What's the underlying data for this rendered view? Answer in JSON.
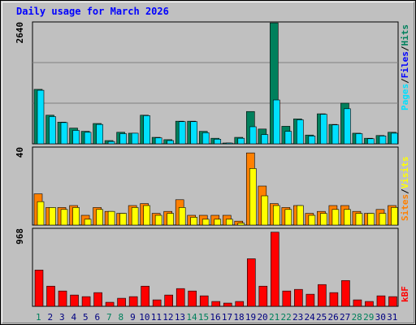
{
  "title": "Daily usage for March 2026",
  "colors": {
    "hits": "#00805c",
    "files": "#0000ff",
    "pages": "#00e0ff",
    "visits": "#ffff00",
    "sites": "#ff8000",
    "kbytes": "#ff0000",
    "weekend_label": "#00805c",
    "weekday_label": "#000080",
    "background": "#c0c0c0"
  },
  "chart_data": [
    {
      "type": "bar",
      "title": "Daily usage for March 2026",
      "ymax_label": "2640",
      "ylim": [
        0,
        2640
      ],
      "legend": [
        "Pages",
        "/",
        "Files",
        "/",
        "Hits"
      ],
      "categories": [
        "1",
        "2",
        "3",
        "4",
        "5",
        "6",
        "7",
        "8",
        "9",
        "10",
        "11",
        "12",
        "13",
        "14",
        "15",
        "16",
        "17",
        "18",
        "19",
        "20",
        "21",
        "22",
        "23",
        "24",
        "25",
        "26",
        "27",
        "28",
        "29",
        "30",
        "31"
      ],
      "series": [
        {
          "name": "Hits",
          "values": [
            1180,
            620,
            470,
            340,
            270,
            440,
            70,
            250,
            230,
            620,
            140,
            90,
            490,
            490,
            270,
            120,
            10,
            140,
            700,
            320,
            2620,
            380,
            540,
            190,
            650,
            420,
            880,
            230,
            120,
            180,
            250
          ]
        },
        {
          "name": "Pages",
          "values": [
            1160,
            590,
            460,
            290,
            250,
            420,
            50,
            220,
            230,
            610,
            130,
            70,
            480,
            480,
            240,
            100,
            10,
            120,
            370,
            200,
            950,
            270,
            520,
            170,
            640,
            410,
            760,
            220,
            110,
            170,
            230
          ]
        }
      ]
    },
    {
      "type": "bar",
      "ymax_label": "40",
      "ylim": [
        0,
        40
      ],
      "legend": [
        "Sites",
        "/",
        "Visits"
      ],
      "categories": [
        "1",
        "2",
        "3",
        "4",
        "5",
        "6",
        "7",
        "8",
        "9",
        "10",
        "11",
        "12",
        "13",
        "14",
        "15",
        "16",
        "17",
        "18",
        "19",
        "20",
        "21",
        "22",
        "23",
        "24",
        "25",
        "26",
        "27",
        "28",
        "29",
        "30",
        "31"
      ],
      "series": [
        {
          "name": "Visits",
          "values": [
            12,
            9,
            8,
            9,
            3,
            8,
            7,
            6,
            9,
            10,
            5,
            6,
            9,
            4,
            3,
            3,
            3,
            1,
            29,
            15,
            10,
            8,
            10,
            5,
            6,
            8,
            8,
            6,
            6,
            6,
            9
          ]
        },
        {
          "name": "Sites",
          "values": [
            16,
            9,
            9,
            10,
            5,
            9,
            7,
            6,
            10,
            11,
            6,
            7,
            13,
            5,
            5,
            5,
            5,
            2,
            37,
            20,
            11,
            9,
            10,
            6,
            7,
            10,
            10,
            7,
            6,
            8,
            10
          ]
        }
      ]
    },
    {
      "type": "bar",
      "ymax_label": "968",
      "ylim": [
        0,
        968
      ],
      "legend": [
        "kB",
        "F"
      ],
      "categories": [
        "1",
        "2",
        "3",
        "4",
        "5",
        "6",
        "7",
        "8",
        "9",
        "10",
        "11",
        "12",
        "13",
        "14",
        "15",
        "16",
        "17",
        "18",
        "19",
        "20",
        "21",
        "22",
        "23",
        "24",
        "25",
        "26",
        "27",
        "28",
        "29",
        "30",
        "31"
      ],
      "series": [
        {
          "name": "kB F",
          "values": [
            450,
            250,
            190,
            140,
            120,
            170,
            50,
            100,
            120,
            250,
            80,
            140,
            220,
            190,
            130,
            60,
            40,
            60,
            590,
            250,
            920,
            190,
            210,
            150,
            270,
            170,
            320,
            80,
            60,
            130,
            120
          ]
        }
      ]
    }
  ],
  "x_axis": {
    "weekends": [
      "1",
      "7",
      "8",
      "14",
      "15",
      "21",
      "22",
      "28",
      "29"
    ]
  }
}
